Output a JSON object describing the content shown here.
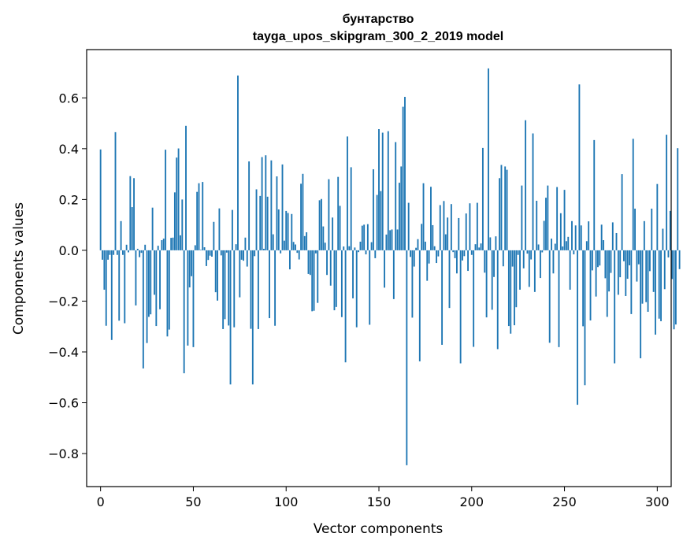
{
  "chart_data": {
    "type": "bar",
    "title": "бунтарство",
    "subtitle": "tayga_upos_skipgram_300_2_2019 model",
    "xlabel": "Vector components",
    "ylabel": "Components values",
    "xlim": [
      -7.5,
      307.5
    ],
    "ylim": [
      -0.93,
      0.79
    ],
    "xticks": [
      0,
      50,
      100,
      150,
      200,
      250,
      300
    ],
    "yticks": [
      -0.8,
      -0.6,
      -0.4,
      -0.2,
      0.0,
      0.2,
      0.4,
      0.6
    ],
    "ytick_labels": [
      "−0.8",
      "−0.6",
      "−0.4",
      "−0.2",
      "0.0",
      "0.2",
      "0.4",
      "0.6"
    ],
    "bar_color": "#1f77b4",
    "grid": false,
    "legend": "none",
    "values": [
      0.397,
      -0.037,
      -0.155,
      -0.297,
      -0.037,
      -0.018,
      -0.353,
      -0.018,
      0.465,
      -0.018,
      -0.277,
      0.115,
      -0.018,
      -0.287,
      0.022,
      -0.008,
      0.292,
      0.17,
      0.284,
      -0.217,
      0.006,
      -0.027,
      -0.01,
      -0.465,
      0.022,
      -0.365,
      -0.262,
      -0.252,
      0.168,
      -0.175,
      -0.298,
      0.018,
      -0.232,
      0.04,
      0.046,
      0.396,
      -0.339,
      -0.312,
      0.049,
      0.05,
      0.228,
      0.365,
      0.401,
      0.059,
      0.2,
      -0.484,
      0.49,
      -0.375,
      -0.146,
      -0.102,
      -0.381,
      0.02,
      0.23,
      0.264,
      0.002,
      0.269,
      0.012,
      -0.062,
      -0.038,
      -0.021,
      -0.025,
      0.112,
      -0.165,
      -0.198,
      0.165,
      -0.02,
      -0.31,
      -0.271,
      -0.009,
      -0.296,
      -0.528,
      0.159,
      -0.303,
      0.024,
      0.688,
      -0.185,
      -0.037,
      -0.041,
      0.05,
      -0.064,
      0.35,
      -0.309,
      -0.528,
      -0.023,
      0.24,
      -0.31,
      0.214,
      0.367,
      0.006,
      0.374,
      0.211,
      -0.267,
      0.354,
      0.063,
      -0.297,
      0.291,
      0.161,
      -0.012,
      0.338,
      0.038,
      0.155,
      0.147,
      -0.075,
      0.143,
      0.033,
      0.023,
      -0.01,
      -0.036,
      0.262,
      0.301,
      0.056,
      0.071,
      -0.093,
      -0.097,
      -0.24,
      -0.238,
      -0.012,
      -0.207,
      0.197,
      0.202,
      0.094,
      0.03,
      -0.097,
      0.28,
      -0.139,
      0.129,
      -0.236,
      -0.223,
      0.289,
      0.175,
      -0.263,
      0.015,
      -0.441,
      0.448,
      0.016,
      0.327,
      -0.189,
      0.011,
      -0.303,
      -0.007,
      0.034,
      0.097,
      0.101,
      -0.016,
      0.103,
      -0.293,
      0.032,
      0.319,
      -0.031,
      0.218,
      0.477,
      0.233,
      0.463,
      -0.147,
      0.062,
      0.469,
      0.079,
      0.082,
      -0.192,
      0.426,
      0.082,
      0.266,
      0.33,
      0.565,
      0.604,
      -0.846,
      0.187,
      -0.026,
      -0.265,
      -0.064,
      0.01,
      0.044,
      -0.437,
      0.104,
      0.264,
      0.034,
      -0.12,
      -0.052,
      0.25,
      0.099,
      0.016,
      -0.05,
      -0.024,
      0.178,
      -0.372,
      0.194,
      0.063,
      0.129,
      -0.227,
      0.182,
      -0.007,
      -0.031,
      -0.091,
      0.127,
      -0.445,
      -0.04,
      -0.023,
      0.145,
      -0.081,
      0.185,
      -0.018,
      -0.38,
      0.024,
      0.187,
      0.011,
      0.027,
      0.403,
      -0.088,
      -0.264,
      0.716,
      0.051,
      -0.234,
      -0.105,
      0.055,
      -0.389,
      0.284,
      0.336,
      -0.063,
      0.33,
      0.317,
      -0.298,
      -0.328,
      -0.064,
      -0.295,
      -0.224,
      -0.018,
      -0.155,
      0.255,
      -0.071,
      0.512,
      -0.013,
      -0.144,
      -0.036,
      0.46,
      -0.164,
      0.195,
      0.023,
      -0.109,
      -0.008,
      0.116,
      0.207,
      0.255,
      -0.364,
      0.046,
      -0.091,
      0.026,
      0.249,
      -0.381,
      0.146,
      0.015,
      0.238,
      0.036,
      0.053,
      -0.155,
      0.115,
      -0.016,
      0.098,
      -0.608,
      0.653,
      0.098,
      -0.299,
      -0.531,
      0.036,
      0.114,
      -0.276,
      -0.079,
      0.434,
      -0.182,
      -0.066,
      -0.06,
      0.101,
      0.04,
      -0.11,
      -0.262,
      -0.162,
      -0.089,
      0.11,
      -0.445,
      0.068,
      -0.175,
      -0.106,
      0.3,
      -0.043,
      -0.18,
      -0.112,
      -0.059,
      -0.251,
      0.439,
      0.164,
      -0.123,
      -0.055,
      -0.425,
      -0.21,
      0.115,
      -0.204,
      -0.242,
      -0.082,
      0.164,
      -0.164,
      -0.332,
      0.261,
      -0.269,
      -0.279,
      0.085,
      -0.153,
      0.455,
      -0.028,
      0.155,
      -0.113,
      -0.311,
      -0.292,
      0.402,
      -0.074
    ]
  }
}
